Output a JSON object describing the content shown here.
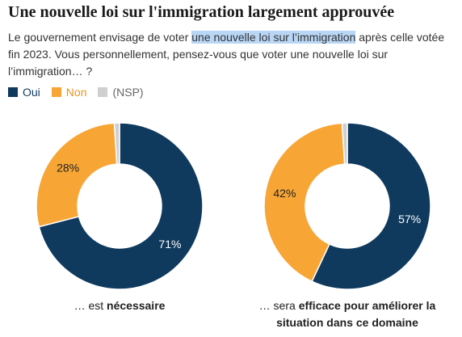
{
  "title": "Une nouvelle loi sur l'immigration largement approuvée",
  "subtitle": [
    "Le gouvernement envisage de voter ",
    "une nouvelle loi sur l’immigration",
    " après celle votée fin 2023. Vous personnellement, pensez-vous que voter une nouvelle loi sur l’immigration… ?"
  ],
  "legend": {
    "categories": [
      "Oui",
      "Non",
      "(NSP)"
    ],
    "colors": [
      "#0f3a5e",
      "#f7a535",
      "#cfcfcf"
    ]
  },
  "chart_data": [
    {
      "type": "pie",
      "values": [
        71,
        28,
        1
      ],
      "value_labels": [
        "71%",
        "28%",
        null
      ],
      "caption": [
        "… est ",
        "nécessaire"
      ]
    },
    {
      "type": "pie",
      "values": [
        57,
        42,
        1
      ],
      "value_labels": [
        "57%",
        "42%",
        null
      ],
      "caption": [
        "… sera ",
        "efficace pour améliorer la situation dans ce domaine"
      ]
    }
  ]
}
